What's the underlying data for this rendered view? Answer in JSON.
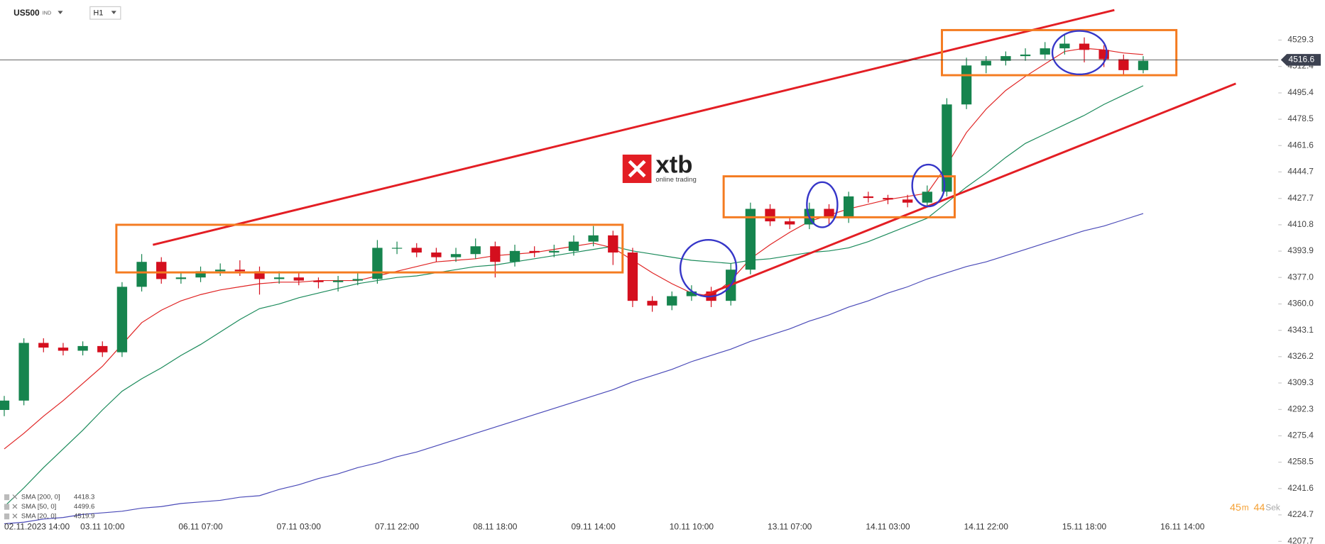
{
  "chart_data": {
    "type": "candlestick",
    "symbol": "US500",
    "symbol_type": "IND",
    "timeframe": "H1",
    "logo": "xtb",
    "logo_tagline": "online trading",
    "countdown": {
      "minutes": 45,
      "minutes_unit": "m",
      "seconds": 44,
      "seconds_unit": "Sek"
    },
    "last_price": 4516.6,
    "categories": [
      "02.11.2023 14:00",
      null,
      null,
      null,
      null,
      "03.11 10:00",
      null,
      null,
      null,
      null,
      "06.11 07:00",
      null,
      null,
      null,
      null,
      "07.11 03:00",
      null,
      null,
      null,
      null,
      "07.11 22:00",
      null,
      null,
      null,
      null,
      "08.11 18:00",
      null,
      null,
      null,
      null,
      "09.11 14:00",
      null,
      null,
      null,
      null,
      "10.11 10:00",
      null,
      null,
      null,
      null,
      "13.11 07:00",
      null,
      null,
      null,
      null,
      "14.11 03:00",
      null,
      null,
      null,
      null,
      "14.11 22:00",
      null,
      null,
      null,
      null,
      "15.11 18:00",
      null,
      null,
      null,
      null,
      "16.11 14:00"
    ],
    "open": [
      4292,
      4298,
      4335,
      4332,
      4330,
      4333,
      4329,
      4371,
      4387,
      4376,
      4377,
      4381,
      4382,
      4381,
      4376,
      4377,
      4375,
      4374,
      4375,
      4376,
      4396,
      4396,
      4393,
      4390,
      4392,
      4397,
      4387,
      4394,
      4393,
      4394,
      4400,
      4404,
      4393,
      4362,
      4359,
      4365,
      4368,
      4362,
      4382,
      4421,
      4413,
      4411,
      4421,
      4415,
      4429,
      4428,
      4427,
      4425,
      4432,
      4488,
      4513,
      4516,
      4519,
      4520,
      4524,
      4527,
      4523,
      4517,
      4510,
      null,
      null
    ],
    "high": [
      4301,
      4338,
      4338,
      4335,
      4336,
      4336,
      4374,
      4392,
      4390,
      4380,
      4384,
      4386,
      4388,
      4384,
      4381,
      4380,
      4377,
      4378,
      4380,
      4401,
      4400,
      4399,
      4396,
      4396,
      4402,
      4400,
      4398,
      4397,
      4398,
      4404,
      4410,
      4407,
      4396,
      4365,
      4368,
      4372,
      4371,
      4386,
      4425,
      4424,
      4416,
      4425,
      4424,
      4432,
      4432,
      4430,
      4430,
      4436,
      4492,
      4518,
      4519,
      4522,
      4524,
      4528,
      4533,
      4531,
      4526,
      4520,
      4519,
      null,
      null
    ],
    "low": [
      4288,
      4295,
      4329,
      4327,
      4327,
      4326,
      4326,
      4368,
      4373,
      4373,
      4374,
      4378,
      4378,
      4366,
      4373,
      4372,
      4370,
      4368,
      4372,
      4373,
      4392,
      4390,
      4387,
      4387,
      4389,
      4377,
      4384,
      4390,
      4390,
      4391,
      4397,
      4385,
      4358,
      4355,
      4356,
      4362,
      4358,
      4359,
      4379,
      4410,
      4408,
      4408,
      4410,
      4412,
      4425,
      4424,
      4422,
      4422,
      4429,
      4485,
      4508,
      4513,
      4516,
      4517,
      4520,
      4515,
      4512,
      4507,
      4508,
      null,
      null
    ],
    "close": [
      4298,
      4335,
      4332,
      4330,
      4333,
      4329,
      4371,
      4387,
      4376,
      4377,
      4381,
      4382,
      4381,
      4376,
      4377,
      4375,
      4374,
      4375,
      4376,
      4396,
      4396,
      4393,
      4390,
      4392,
      4397,
      4387,
      4394,
      4393,
      4394,
      4400,
      4404,
      4393,
      4362,
      4359,
      4365,
      4368,
      4362,
      4382,
      4421,
      4413,
      4411,
      4421,
      4415,
      4429,
      4428,
      4427,
      4425,
      4432,
      4488,
      4513,
      4516,
      4519,
      4520,
      4524,
      4527,
      4523,
      4517,
      4510,
      4516,
      null,
      null
    ],
    "up_color": "#16844e",
    "down_color": "#d40f1e",
    "series": [
      {
        "name": "SMA [200, 0]",
        "legend_value": 4418.3,
        "color": "#4a4ab8",
        "values": [
          4219,
          4220,
          4222,
          4223,
          4225,
          4226,
          4227,
          4229,
          4230,
          4232,
          4233,
          4234,
          4236,
          4237,
          4241,
          4244,
          4248,
          4251,
          4255,
          4258,
          4262,
          4265,
          4269,
          4273,
          4277,
          4281,
          4285,
          4289,
          4293,
          4297,
          4301,
          4305,
          4310,
          4314,
          4318,
          4323,
          4327,
          4331,
          4336,
          4340,
          4344,
          4349,
          4353,
          4358,
          4362,
          4367,
          4371,
          4376,
          4380,
          4384,
          4387,
          4391,
          4395,
          4399,
          4403,
          4407,
          4410,
          4414,
          4418,
          null,
          null
        ]
      },
      {
        "name": "SMA [50, 0]",
        "legend_value": 4499.6,
        "color": "#1a8a5a",
        "values": [
          4230,
          4242,
          4255,
          4267,
          4279,
          4292,
          4304,
          4312,
          4319,
          4327,
          4334,
          4342,
          4350,
          4357,
          4360,
          4364,
          4367,
          4370,
          4373,
          4375,
          4377,
          4378,
          4380,
          4382,
          4384,
          4385,
          4387,
          4389,
          4391,
          4393,
          4395,
          4397,
          4394,
          4392,
          4390,
          4388,
          4387,
          4386,
          4388,
          4389,
          4391,
          4393,
          4394,
          4396,
          4400,
          4405,
          4410,
          4415,
          4425,
          4435,
          4444,
          4454,
          4463,
          4469,
          4475,
          4481,
          4488,
          4494,
          4500,
          null,
          null
        ]
      },
      {
        "name": "SMA [20, 0]",
        "legend_value": 4519.9,
        "color": "#e02424",
        "values": [
          4267,
          4277,
          4288,
          4298,
          4309,
          4320,
          4334,
          4348,
          4356,
          4362,
          4366,
          4369,
          4371,
          4373,
          4374,
          4374,
          4375,
          4375,
          4375,
          4378,
          4381,
          4384,
          4387,
          4388,
          4389,
          4391,
          4392,
          4393,
          4395,
          4397,
          4399,
          4396,
          4388,
          4380,
          4373,
          4367,
          4365,
          4375,
          4389,
          4398,
          4406,
          4413,
          4417,
          4421,
          4424,
          4427,
          4429,
          4431,
          4449,
          4470,
          4485,
          4497,
          4506,
          4514,
          4522,
          4524,
          4523,
          4521,
          4520,
          null,
          null
        ]
      }
    ],
    "ylim": [
      4206,
      4555
    ],
    "yticks": [
      4529.3,
      4512.4,
      4495.4,
      4478.5,
      4461.6,
      4444.7,
      4427.7,
      4410.8,
      4393.9,
      {
        "value": 4377,
        "label": "4377.0"
      },
      {
        "value": 4360,
        "label": "4360.0"
      },
      4343.1,
      4326.2,
      4309.3,
      4292.3,
      4275.4,
      4258.5,
      4241.6,
      4224.7,
      4207.7
    ]
  }
}
